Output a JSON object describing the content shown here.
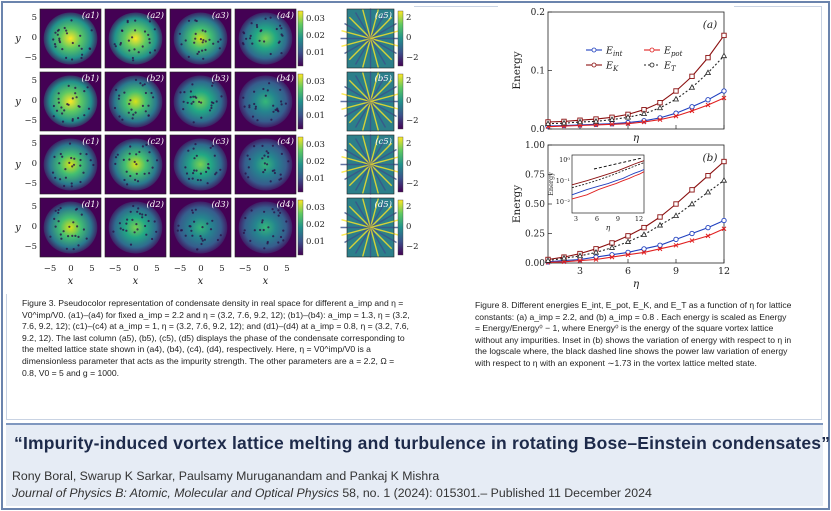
{
  "figure_left": {
    "row_labels": [
      "(a1)",
      "(a2)",
      "(a3)",
      "(a4)",
      "(a5)",
      "(b1)",
      "(b2)",
      "(b3)",
      "(b4)",
      "(b5)",
      "(c1)",
      "(c2)",
      "(c3)",
      "(c4)",
      "(c5)",
      "(d1)",
      "(d2)",
      "(d3)",
      "(d4)",
      "(d5)"
    ],
    "y_axis_label": "y",
    "x_axis_label": "x",
    "y_ticks": [
      "5",
      "0",
      "−5"
    ],
    "x_ticks": [
      "−5",
      "0",
      "5"
    ],
    "density_cbar_ticks": [
      "0.03",
      "0.02",
      "0.01"
    ],
    "phase_cbar_ticks": [
      "2",
      "0",
      "−2"
    ],
    "colors": {
      "density_low": "#440154",
      "density_mid": "#21918c",
      "density_high": "#fde725"
    }
  },
  "caption_left": {
    "text": "Figure 3. Pseudocolor representation of condensate density in real space for different a_imp and η = V0^imp/V0. (a1)–(a4) for fixed a_imp = 2.2 and η = (3.2, 7.6, 9.2, 12); (b1)–(b4): a_imp = 1.3, η = (3.2, 7.6, 9.2, 12); (c1)–(c4) at a_imp = 1, η = (3.2, 7.6, 9.2, 12); and (d1)–(d4) at a_imp = 0.8, η = (3.2, 7.6, 9.2, 12). The last column (a5), (b5), (c5), (d5) displays the phase of the condensate corresponding to the melted lattice state shown in (a4), (b4), (c4), (d4), respectively. Here, η = V0^imp/V0 is a dimensionless parameter that acts as the impurity strength. The other parameters are a = 2.2, Ω = 0.8, V0 = 5 and g = 1000."
  },
  "caption_right": {
    "text": "Figure 8. Different energies E_int, E_pot, E_K, and E_T as a function of η for lattice constants: (a) a_imp = 2.2, and (b) a_imp = 0.8 . Each energy is scaled as Energy = Energy/Energy⁰ − 1, where Energy⁰ is the energy of the square vortex lattice without any impurities. Inset in (b) shows the variation of energy with respect to η in the logscale where, the black dashed line shows the power law variation of energy with respect to η with an exponent ∼1.73 in the vortex lattice melted state."
  },
  "chart_data": [
    {
      "type": "line",
      "panel": "(a)",
      "xlabel": "η",
      "ylabel": "Energy",
      "xlim": [
        1,
        12
      ],
      "ylim": [
        0,
        0.2
      ],
      "x_ticks": [
        3,
        6,
        9,
        12
      ],
      "y_ticks": [
        "0.0",
        "0.1",
        "0.2"
      ],
      "x": [
        1,
        2,
        3,
        4,
        5,
        6,
        7,
        8,
        9,
        10,
        11,
        12
      ],
      "series": [
        {
          "name": "E_int",
          "color": "#1f3fbf",
          "values": [
            0.005,
            0.006,
            0.007,
            0.008,
            0.009,
            0.011,
            0.014,
            0.019,
            0.027,
            0.038,
            0.05,
            0.065
          ]
        },
        {
          "name": "E_pot",
          "color": "#e02020",
          "values": [
            0.004,
            0.005,
            0.006,
            0.007,
            0.008,
            0.009,
            0.012,
            0.016,
            0.022,
            0.031,
            0.041,
            0.053
          ]
        },
        {
          "name": "E_K",
          "color": "#8b1010",
          "values": [
            0.012,
            0.013,
            0.015,
            0.017,
            0.02,
            0.025,
            0.033,
            0.045,
            0.065,
            0.09,
            0.122,
            0.16
          ]
        },
        {
          "name": "E_T",
          "color": "#222222",
          "values": [
            0.009,
            0.01,
            0.012,
            0.013,
            0.016,
            0.02,
            0.026,
            0.036,
            0.051,
            0.071,
            0.096,
            0.125
          ]
        }
      ],
      "legend": [
        "E_int",
        "E_pot",
        "E_K",
        "E_T"
      ]
    },
    {
      "type": "line",
      "panel": "(b)",
      "xlabel": "η",
      "ylabel": "Energy",
      "xlim": [
        1,
        12
      ],
      "ylim": [
        0,
        1.0
      ],
      "x_ticks": [
        3,
        6,
        9,
        12
      ],
      "y_ticks": [
        "0.00",
        "0.25",
        "0.50",
        "0.75",
        "1.00"
      ],
      "x": [
        1,
        2,
        3,
        4,
        5,
        6,
        7,
        8,
        9,
        10,
        11,
        12
      ],
      "series": [
        {
          "name": "E_int",
          "color": "#1f3fbf",
          "values": [
            0.01,
            0.02,
            0.03,
            0.05,
            0.07,
            0.09,
            0.12,
            0.15,
            0.2,
            0.25,
            0.3,
            0.36
          ]
        },
        {
          "name": "E_pot",
          "color": "#e02020",
          "values": [
            0.005,
            0.01,
            0.02,
            0.03,
            0.05,
            0.07,
            0.09,
            0.12,
            0.15,
            0.19,
            0.23,
            0.29
          ]
        },
        {
          "name": "E_K",
          "color": "#8b1010",
          "values": [
            0.03,
            0.05,
            0.08,
            0.12,
            0.17,
            0.23,
            0.3,
            0.39,
            0.5,
            0.62,
            0.74,
            0.86
          ]
        },
        {
          "name": "E_T",
          "color": "#222222",
          "values": [
            0.02,
            0.04,
            0.06,
            0.09,
            0.13,
            0.18,
            0.24,
            0.32,
            0.4,
            0.5,
            0.6,
            0.7
          ]
        }
      ],
      "inset": {
        "xlabel": "η",
        "ylabel": "Energy",
        "x_ticks": [
          3,
          6,
          9,
          12
        ],
        "y_ticks": [
          "10⁰",
          "10⁻¹",
          "10⁻²"
        ],
        "scale": "log"
      }
    }
  ],
  "banner": {
    "title": "“Impurity-induced vortex lattice melting and turbulence in rotating Bose–Einstein condensates”",
    "authors": "Rony Boral, Swarup K Sarkar, Paulsamy Muruganandam and Pankaj K Mishra",
    "journal_name": "Journal of Physics B: Atomic, Molecular and Optical Physics",
    "journal_details": " 58, no. 1 (2024): 015301.– Published 11 December 2024"
  }
}
